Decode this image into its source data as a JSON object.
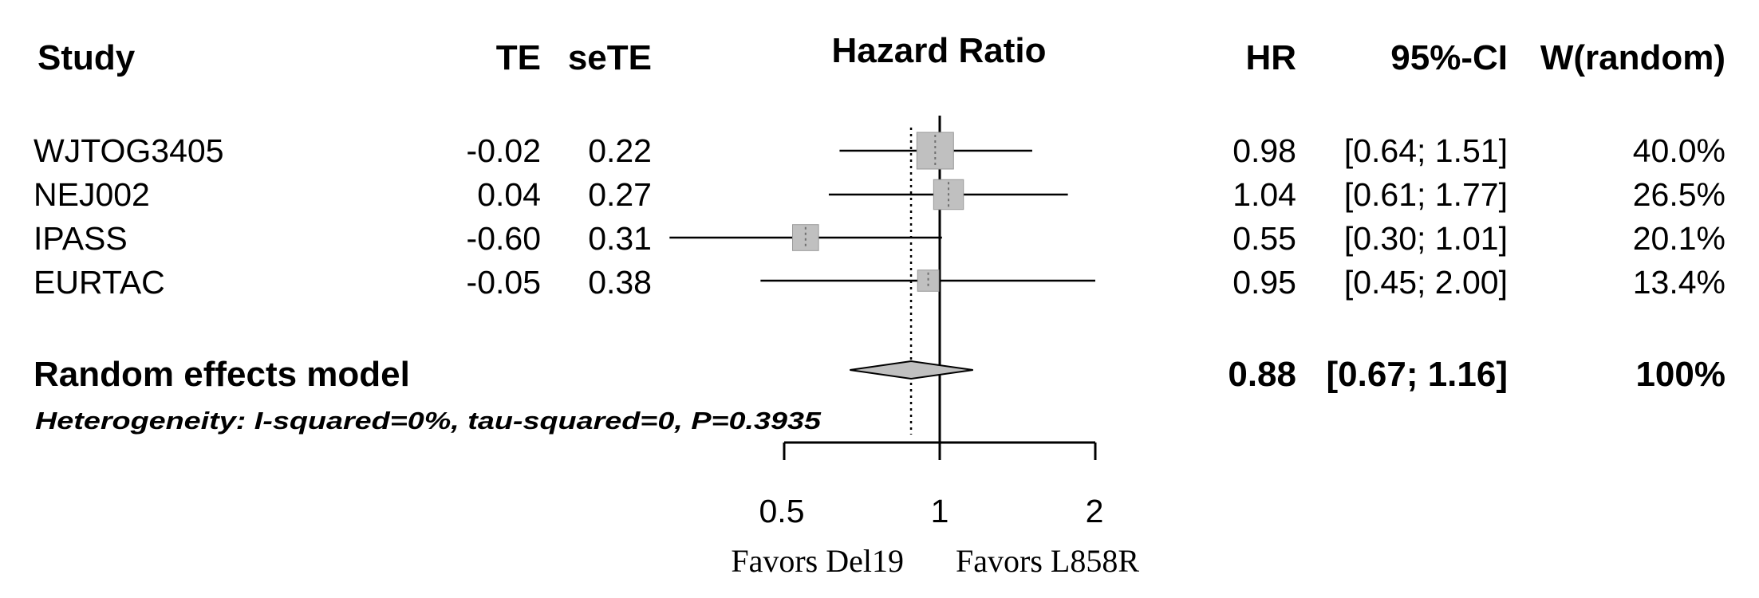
{
  "chart_data": {
    "type": "forest",
    "columns": {
      "study": "Study",
      "te": "TE",
      "sete": "seTE",
      "plot": "Hazard Ratio",
      "hr": "HR",
      "ci": "95%-CI",
      "weight": "W(random)"
    },
    "studies": [
      {
        "study": "WJTOG3405",
        "te": "-0.02",
        "sete": "0.22",
        "hr_text": "0.98",
        "ci_text": "[0.64; 1.51]",
        "weight_text": "40.0%",
        "hr": 0.98,
        "lower": 0.64,
        "upper": 1.51,
        "weight": 40.0
      },
      {
        "study": "NEJ002",
        "te": "0.04",
        "sete": "0.27",
        "hr_text": "1.04",
        "ci_text": "[0.61; 1.77]",
        "weight_text": "26.5%",
        "hr": 1.04,
        "lower": 0.61,
        "upper": 1.77,
        "weight": 26.5
      },
      {
        "study": "IPASS",
        "te": "-0.60",
        "sete": "0.31",
        "hr_text": "0.55",
        "ci_text": "[0.30; 1.01]",
        "weight_text": "20.1%",
        "hr": 0.55,
        "lower": 0.3,
        "upper": 1.01,
        "weight": 20.1
      },
      {
        "study": "EURTAC",
        "te": "-0.05",
        "sete": "0.38",
        "hr_text": "0.95",
        "ci_text": "[0.45; 2.00]",
        "weight_text": "13.4%",
        "hr": 0.95,
        "lower": 0.45,
        "upper": 2.0,
        "weight": 13.4
      }
    ],
    "pooled": {
      "label": "Random effects model",
      "hr_text": "0.88",
      "ci_text": "[0.67; 1.16]",
      "weight_text": "100%",
      "hr": 0.88,
      "lower": 0.67,
      "upper": 1.16
    },
    "heterogeneity": "Heterogeneity: I-squared=0%, tau-squared=0, P=0.3935",
    "x_axis": {
      "scale": "log",
      "ticks": [
        0.5,
        1,
        2
      ],
      "tick_labels": [
        "0.5",
        "1",
        "2"
      ],
      "range": [
        0.5,
        2
      ],
      "reference": 1
    },
    "favors_left": "Favors Del19",
    "favors_right": "Favors L858R",
    "colors": {
      "box": "#c0c0c0",
      "box_edge": "#999999",
      "line": "#000000"
    }
  }
}
